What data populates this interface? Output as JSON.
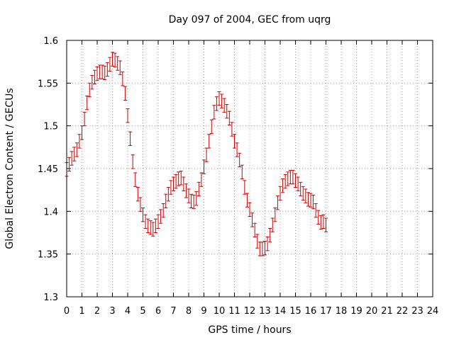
{
  "chart_data": {
    "type": "line",
    "style": "errorbars",
    "title": "Day 097 of 2004, GEC from uqrg",
    "xlabel": "GPS time / hours",
    "ylabel": "Global Electron Content / GECUs",
    "xlim": [
      0,
      24
    ],
    "ylim": [
      1.3,
      1.6
    ],
    "xticks": [
      0,
      1,
      2,
      3,
      4,
      5,
      6,
      7,
      8,
      9,
      10,
      11,
      12,
      13,
      14,
      15,
      16,
      17,
      18,
      19,
      20,
      21,
      22,
      23,
      24
    ],
    "yticks": [
      1.3,
      1.35,
      1.4,
      1.45,
      1.5,
      1.55,
      1.6
    ],
    "ytick_labels": [
      "1.3",
      "1.35",
      "1.4",
      "1.45",
      "1.5",
      "1.55",
      "1.6"
    ],
    "grid": true,
    "series_color": "#cc0000",
    "error": 0.008,
    "x_step_hours": 0.16667,
    "values": [
      1.449,
      1.455,
      1.462,
      1.467,
      1.472,
      1.482,
      1.492,
      1.508,
      1.527,
      1.542,
      1.551,
      1.557,
      1.561,
      1.563,
      1.563,
      1.562,
      1.566,
      1.572,
      1.578,
      1.577,
      1.573,
      1.568,
      1.555,
      1.538,
      1.512,
      1.485,
      1.458,
      1.437,
      1.42,
      1.408,
      1.396,
      1.388,
      1.383,
      1.381,
      1.379,
      1.383,
      1.388,
      1.394,
      1.401,
      1.412,
      1.42,
      1.428,
      1.432,
      1.435,
      1.438,
      1.439,
      1.432,
      1.424,
      1.418,
      1.412,
      1.411,
      1.415,
      1.426,
      1.437,
      1.452,
      1.466,
      1.482,
      1.499,
      1.516,
      1.526,
      1.532,
      1.529,
      1.524,
      1.517,
      1.509,
      1.496,
      1.482,
      1.472,
      1.46,
      1.446,
      1.428,
      1.413,
      1.402,
      1.39,
      1.378,
      1.365,
      1.356,
      1.356,
      1.357,
      1.362,
      1.372,
      1.384,
      1.396,
      1.41,
      1.421,
      1.43,
      1.435,
      1.438,
      1.44,
      1.44,
      1.436,
      1.432,
      1.426,
      1.421,
      1.418,
      1.414,
      1.413,
      1.411,
      1.401,
      1.393,
      1.387,
      1.388,
      1.384
    ]
  }
}
